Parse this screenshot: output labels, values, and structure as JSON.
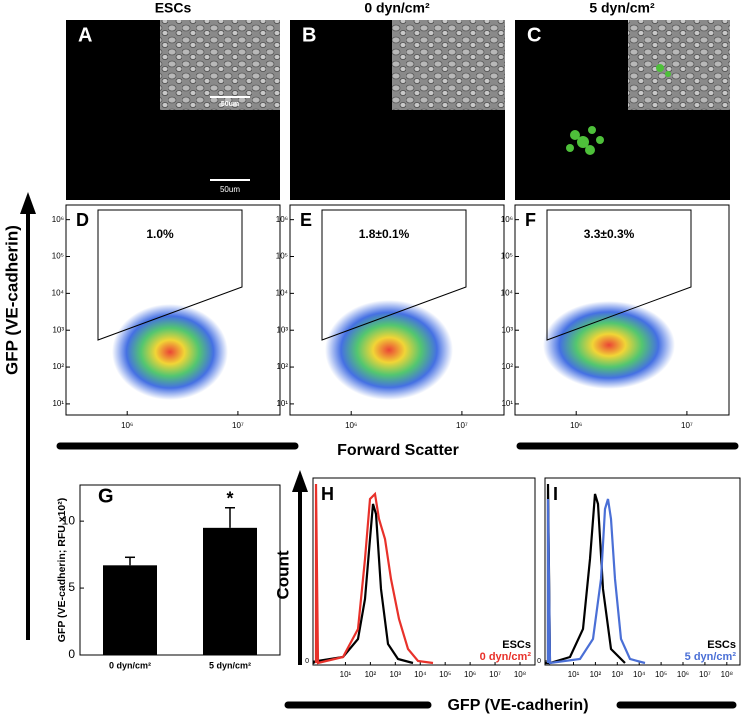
{
  "micro": [
    {
      "letter": "A",
      "title": "ESCs",
      "inset_scale": "50um",
      "main_scale": "50um"
    },
    {
      "letter": "B",
      "title": "0 dyn/cm²"
    },
    {
      "letter": "C",
      "title": "5 dyn/cm²"
    }
  ],
  "flow": {
    "y_label": "GFP (VE-cadherin)",
    "x_label": "Forward Scatter",
    "ylim": [
      5,
      2500000
    ],
    "xlim": [
      280000,
      24000000
    ],
    "log": true,
    "yticks": [
      {
        "value": 10,
        "label": "10¹"
      },
      {
        "value": 100,
        "label": "10²"
      },
      {
        "value": 1000,
        "label": "10³"
      },
      {
        "value": 10000,
        "label": "10⁴"
      },
      {
        "value": 100000,
        "label": "10⁵"
      },
      {
        "value": 1000000,
        "label": "10⁶"
      }
    ],
    "xticks": [
      {
        "value": 1000000,
        "label": "10⁶"
      },
      {
        "value": 10000000,
        "label": "10⁷"
      }
    ],
    "panels": [
      {
        "letter": "D",
        "gate": "1.0%"
      },
      {
        "letter": "E",
        "gate": "1.8±0.1%"
      },
      {
        "letter": "F",
        "gate": "3.3±0.3%"
      }
    ]
  },
  "chart_data": {
    "type": "bar",
    "letter": "G",
    "y_label": "GFP (VE-cadherin; RFU x10²)",
    "categories": [
      "0 dyn/cm²",
      "5 dyn/cm²"
    ],
    "values": [
      6.7,
      9.5
    ],
    "errors": [
      0.6,
      1.5
    ],
    "annotations": [
      null,
      "*"
    ],
    "color": "#000000",
    "ylim": [
      0,
      12.7
    ],
    "yticks": [
      0,
      5,
      10
    ]
  },
  "histograms": {
    "y_label": "Count",
    "x_label": "GFP (VE-cadherin)",
    "xlim": [
      0.5,
      400000000
    ],
    "log": true,
    "y_zero": 0,
    "xticks": [
      {
        "value": 10,
        "label": "10¹"
      },
      {
        "value": 100,
        "label": "10²"
      },
      {
        "value": 1000,
        "label": "10³"
      },
      {
        "value": 10000,
        "label": "10⁴"
      },
      {
        "value": 100000,
        "label": "10⁵"
      },
      {
        "value": 1000000,
        "label": "10⁶"
      },
      {
        "value": 10000000,
        "label": "10⁷"
      },
      {
        "value": 100000000,
        "label": "10⁸"
      }
    ],
    "panels": [
      {
        "letter": "H",
        "series": [
          {
            "name": "ESCs",
            "color": "#000000"
          },
          {
            "name": "0 dyn/cm²",
            "color": "#e8312a"
          }
        ]
      },
      {
        "letter": "I",
        "series": [
          {
            "name": "ESCs",
            "color": "#000000"
          },
          {
            "name": "5 dyn/cm²",
            "color": "#4a6fd6"
          }
        ]
      }
    ]
  }
}
